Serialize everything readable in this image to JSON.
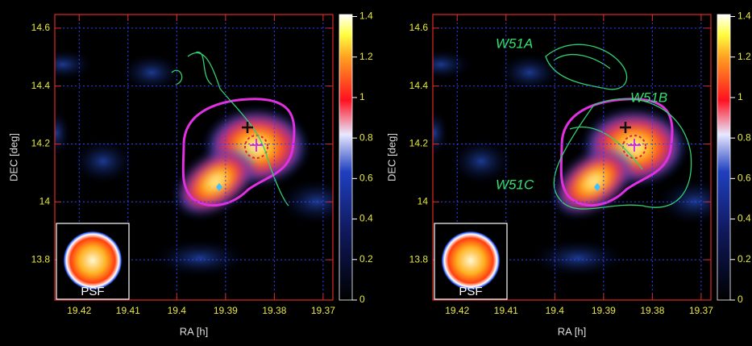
{
  "chart_data": [
    {
      "type": "heatmap",
      "xlabel": "RA [h]",
      "ylabel": "DEC [deg]",
      "xlim": [
        19.425,
        19.368
      ],
      "xticks": [
        19.42,
        19.41,
        19.4,
        19.39,
        19.38,
        19.37
      ],
      "ylim": [
        13.661,
        14.647
      ],
      "yticks": [
        13.8,
        14,
        14.2,
        14.4,
        14.6
      ],
      "clim": [
        0,
        1.41
      ],
      "cticks": [
        0,
        0.2,
        0.4,
        0.6,
        0.8,
        1,
        1.2,
        1.4
      ],
      "inset_label": "PSF",
      "annotations": [],
      "grid": true
    },
    {
      "type": "heatmap",
      "xlabel": "RA [h]",
      "ylabel": "DEC [deg]",
      "xlim": [
        19.425,
        19.368
      ],
      "xticks": [
        19.42,
        19.41,
        19.4,
        19.39,
        19.38,
        19.37
      ],
      "ylim": [
        13.661,
        14.647
      ],
      "yticks": [
        13.8,
        14,
        14.2,
        14.4,
        14.6
      ],
      "clim": [
        0,
        1.41
      ],
      "cticks": [
        0,
        0.2,
        0.4,
        0.6,
        0.8,
        1,
        1.2,
        1.4
      ],
      "inset_label": "PSF",
      "annotations": [
        "W51A",
        "W51B",
        "W51C"
      ],
      "grid": true
    }
  ]
}
